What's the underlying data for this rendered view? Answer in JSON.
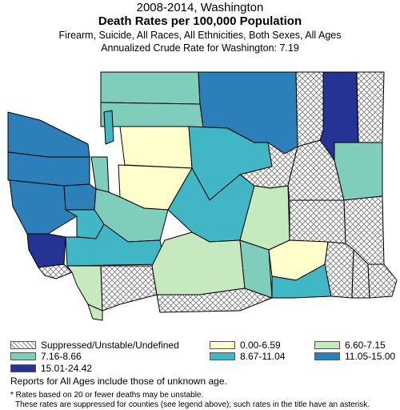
{
  "title": {
    "line1": "2008-2014, Washington",
    "line2": "Death Rates per 100,000 Population",
    "line3": "Firearm, Suicide, All Races, All Ethnicities, Both Sexes, All Ages",
    "line4": "Annualized Crude Rate for Washington: 7.19"
  },
  "colors": {
    "suppressed": "hatch",
    "c1": "#ffffcc",
    "c2": "#c7e9c0",
    "c3": "#7fcdbb",
    "c4": "#41b6c4",
    "c5": "#2c7fb8",
    "c6": "#253494"
  },
  "legend": [
    {
      "label": "Suppressed/Unstable/Undefined",
      "cls": "suppressed"
    },
    {
      "label": "0.00-6.59",
      "cls": "c1"
    },
    {
      "label": "6.60-7.15",
      "cls": "c2"
    },
    {
      "label": "7.16-8.66",
      "cls": "c3"
    },
    {
      "label": "8.67-11.04",
      "cls": "c4"
    },
    {
      "label": "11.05-15.00",
      "cls": "c5"
    },
    {
      "label": "15.01-24.42",
      "cls": "c6"
    }
  ],
  "notes": {
    "ages": "Reports for All Ages include those of unknown age.",
    "unstable": "* Rates based on 20 or fewer deaths may be unstable.",
    "suppressed": "These rates are suppressed for counties (see legend above); such rates in the title have an asterisk."
  }
}
